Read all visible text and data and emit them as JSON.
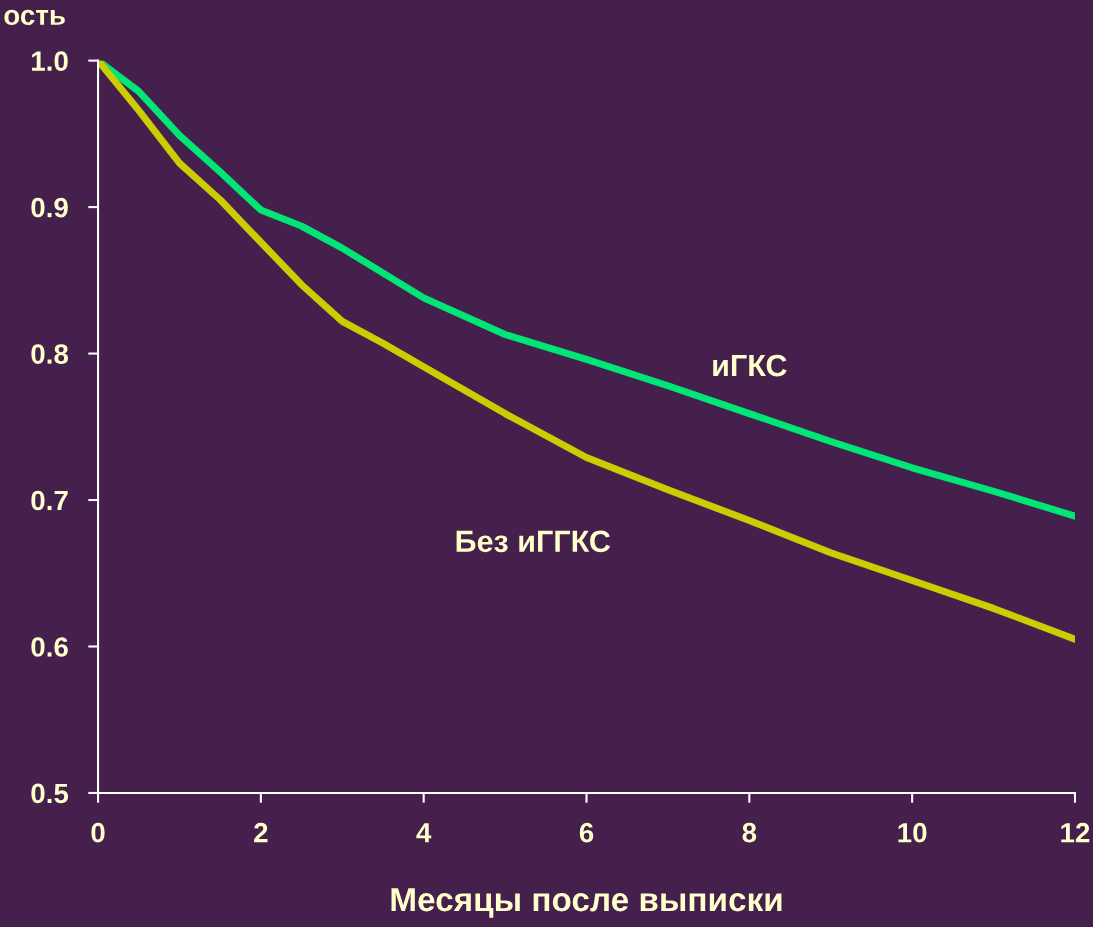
{
  "chart_data": {
    "type": "line",
    "ylabel": "ость",
    "xlabel": "Месяцы после выписки",
    "xlim": [
      0,
      12
    ],
    "xticks": [
      0,
      2,
      4,
      6,
      8,
      10,
      12
    ],
    "ylim": [
      0.5,
      1.0
    ],
    "yticks": [
      {
        "value": 0.5,
        "label": "0.5"
      },
      {
        "value": 0.6,
        "label": "0.6"
      },
      {
        "value": 0.7,
        "label": "0.7"
      },
      {
        "value": 0.8,
        "label": "0.8"
      },
      {
        "value": 0.9,
        "label": "0.9"
      },
      {
        "value": 1.0,
        "label": "1.0"
      }
    ],
    "grid": false,
    "legend": false,
    "marker": "none",
    "line_style": "solid",
    "series": [
      {
        "name": "иГКС",
        "color": "#00e676",
        "x": [
          0,
          0.5,
          1,
          1.5,
          2,
          2.5,
          3,
          4,
          5,
          6,
          7,
          8,
          9,
          10,
          11,
          12
        ],
        "values": [
          1.0,
          0.979,
          0.949,
          0.924,
          0.898,
          0.887,
          0.872,
          0.838,
          0.813,
          0.796,
          0.778,
          0.759,
          0.74,
          0.722,
          0.706,
          0.689
        ]
      },
      {
        "name": "Без иГГКС",
        "color": "#cccc00",
        "x": [
          0,
          0.5,
          1,
          1.5,
          2,
          2.5,
          3,
          3.5,
          4,
          5,
          6,
          7,
          8,
          9,
          10,
          11,
          12
        ],
        "values": [
          1.0,
          0.966,
          0.93,
          0.905,
          0.876,
          0.847,
          0.822,
          0.807,
          0.791,
          0.759,
          0.729,
          0.707,
          0.686,
          0.664,
          0.645,
          0.626,
          0.605
        ]
      }
    ]
  }
}
